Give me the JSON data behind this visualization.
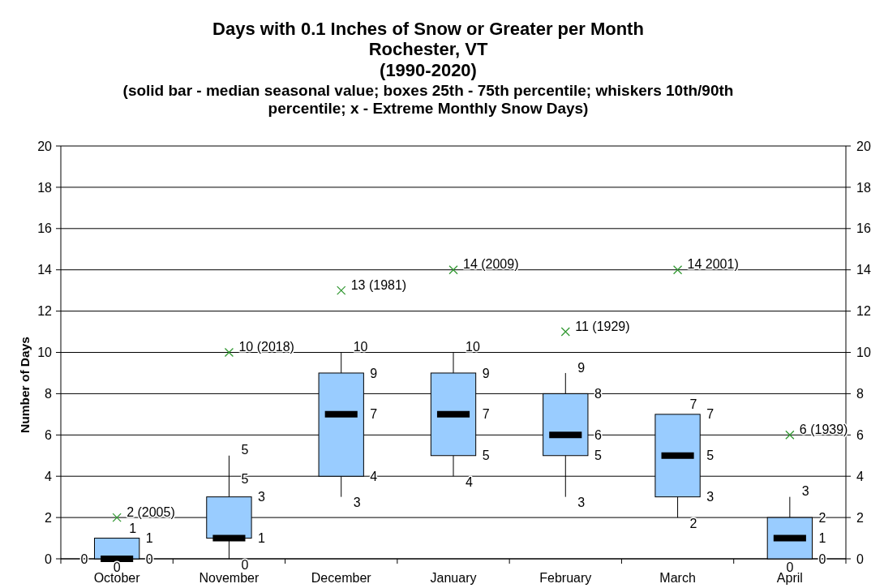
{
  "chart_data": {
    "type": "box",
    "title": "Days with 0.1 Inches of Snow or Greater per Month\nRochester, VT\n(1990-2020)",
    "subtitle": "(solid bar - median seasonal value; boxes 25th - 75th percentile; whiskers 10th/90th percentile; x - Extreme Monthly Snow Days)",
    "ylabel": "Number of Days",
    "categories": [
      "October",
      "November",
      "December",
      "January",
      "February",
      "March",
      "April"
    ],
    "ylim": [
      0,
      20
    ],
    "yticks": [
      0,
      2,
      4,
      6,
      8,
      10,
      12,
      14,
      16,
      18,
      20
    ],
    "y2lim": [
      0,
      20
    ],
    "y2ticks": [
      0,
      2,
      4,
      6,
      8,
      10,
      12,
      14,
      16,
      18,
      20
    ],
    "grid": "y",
    "series": [
      {
        "type": "box",
        "color": "#99ccff",
        "boxes": [
          {
            "low": 0,
            "q1": 0,
            "median": 0,
            "q3": 1,
            "high": 1
          },
          {
            "low": 0,
            "q1": 1,
            "median": 1,
            "q3": 3,
            "high": 5
          },
          {
            "low": 3,
            "q1": 4,
            "median": 7,
            "q3": 9,
            "high": 10
          },
          {
            "low": 4,
            "q1": 5,
            "median": 7,
            "q3": 9,
            "high": 10
          },
          {
            "low": 3,
            "q1": 5,
            "median": 6,
            "q3": 8,
            "high": 9
          },
          {
            "low": 2,
            "q1": 3,
            "median": 5,
            "q3": 7,
            "high": 7
          },
          {
            "low": 0,
            "q1": 0,
            "median": 1,
            "q3": 2,
            "high": 3
          }
        ]
      },
      {
        "type": "scatter",
        "x": [
          "October",
          "November",
          "December",
          "January",
          "February",
          "March",
          "April"
        ],
        "values": [
          2,
          10,
          13,
          14,
          11,
          14,
          6
        ],
        "value_labels": [
          "2 (2005)",
          "10 (2018)",
          "13 (1981)",
          "14 (2009)",
          "11 (1929)",
          "14 2001)",
          "6 (1939)"
        ],
        "color": "#339933",
        "marker": "cross"
      }
    ],
    "annotations": [
      {
        "text": "0",
        "x": "October",
        "y": 0
      },
      {
        "text": "1",
        "x": "October",
        "y": 1
      },
      {
        "text": "0",
        "x": "October",
        "y": 0
      },
      {
        "text": "1",
        "x": "October",
        "y": 1
      },
      {
        "text": "0",
        "x": "October",
        "y": 0
      },
      {
        "text": "1",
        "x": "November",
        "y": 1
      },
      {
        "text": "3",
        "x": "November",
        "y": 3
      },
      {
        "text": "5",
        "x": "November",
        "y": 5
      },
      {
        "text": "0",
        "x": "November",
        "y": 0
      },
      {
        "text": "5",
        "x": "November",
        "y": 3.6
      },
      {
        "text": "7",
        "x": "December",
        "y": 7
      },
      {
        "text": "9",
        "x": "December",
        "y": 9
      },
      {
        "text": "4",
        "x": "December",
        "y": 4
      },
      {
        "text": "10",
        "x": "December",
        "y": 10
      },
      {
        "text": "3",
        "x": "December",
        "y": 3
      },
      {
        "text": "7",
        "x": "January",
        "y": 7
      },
      {
        "text": "9",
        "x": "January",
        "y": 9
      },
      {
        "text": "5",
        "x": "January",
        "y": 5
      },
      {
        "text": "10",
        "x": "January",
        "y": 10
      },
      {
        "text": "4",
        "x": "January",
        "y": 4
      },
      {
        "text": "6",
        "x": "February",
        "y": 6
      },
      {
        "text": "8",
        "x": "February",
        "y": 8
      },
      {
        "text": "5",
        "x": "February",
        "y": 5
      },
      {
        "text": "9",
        "x": "February",
        "y": 9
      },
      {
        "text": "3",
        "x": "February",
        "y": 3
      },
      {
        "text": "5",
        "x": "March",
        "y": 5
      },
      {
        "text": "7",
        "x": "March",
        "y": 7
      },
      {
        "text": "3",
        "x": "March",
        "y": 3
      },
      {
        "text": "7",
        "x": "March",
        "y": 7
      },
      {
        "text": "2",
        "x": "March",
        "y": 2
      },
      {
        "text": "1",
        "x": "April",
        "y": 1
      },
      {
        "text": "2",
        "x": "April",
        "y": 2
      },
      {
        "text": "0",
        "x": "April",
        "y": 0
      },
      {
        "text": "3",
        "x": "April",
        "y": 3
      },
      {
        "text": "0",
        "x": "April",
        "y": 0
      }
    ]
  }
}
